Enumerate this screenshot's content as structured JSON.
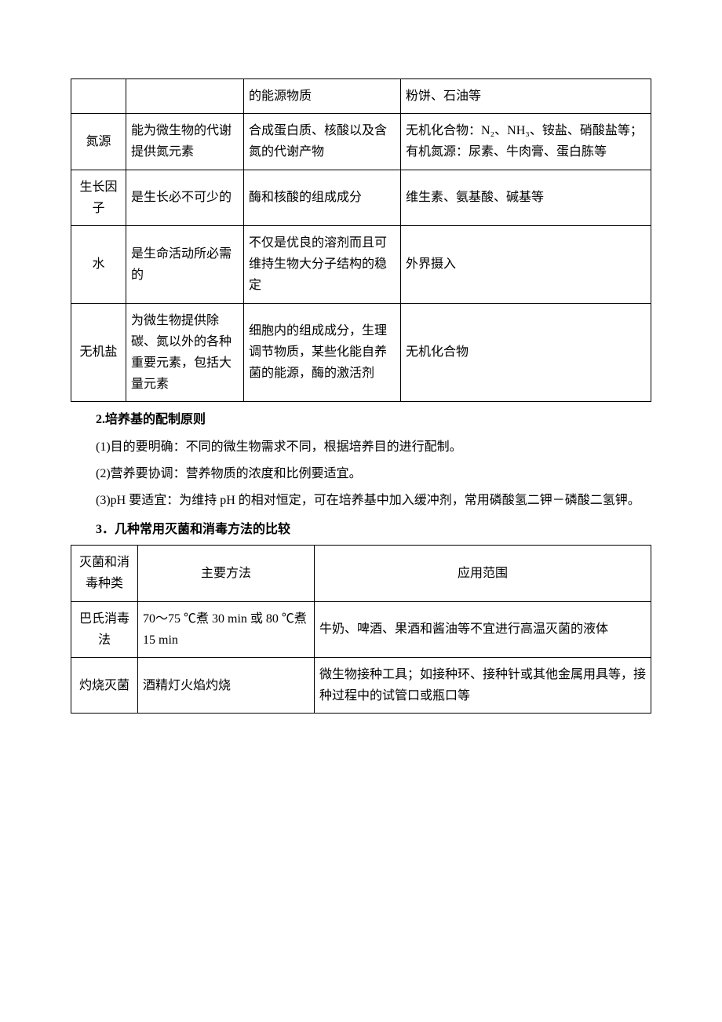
{
  "colors": {
    "page_bg": "#ffffff",
    "text": "#000000",
    "border": "#000000"
  },
  "typography": {
    "body_font": "SimSun",
    "body_size_pt": 12,
    "heading_weight": "bold",
    "line_height": 1.9
  },
  "table1": {
    "type": "table",
    "rows": [
      {
        "c1": "",
        "c2": "",
        "c3": "的能源物质",
        "c4": "粉饼、石油等"
      },
      {
        "c1": "氮源",
        "c2": "能为微生物的代谢提供氮元素",
        "c3": "合成蛋白质、核酸以及含氮的代谢产物",
        "c4": "无机化合物：N₂、NH₃、铵盐、硝酸盐等；有机氮源：尿素、牛肉膏、蛋白胨等"
      },
      {
        "c1": "生长因子",
        "c2": "是生长必不可少的",
        "c3": "酶和核酸的组成成分",
        "c4": "维生素、氨基酸、碱基等"
      },
      {
        "c1": "水",
        "c2": "是生命活动所必需的",
        "c3": "不仅是优良的溶剂而且可维持生物大分子结构的稳定",
        "c4": "外界摄入"
      },
      {
        "c1": "无机盐",
        "c2": "为微生物提供除碳、氮以外的各种重要元素，包括大量元素",
        "c3": "细胞内的组成成分，生理调节物质，某些化能自养菌的能源，酶的激活剂",
        "c4": "无机化合物"
      }
    ]
  },
  "heading2": "2.培养基的配制原则",
  "para1": "(1)目的要明确：不同的微生物需求不同，根据培养目的进行配制。",
  "para2": "(2)营养要协调：营养物质的浓度和比例要适宜。",
  "para3": "(3)pH 要适宜：为维持 pH 的相对恒定，可在培养基中加入缓冲剂，常用磷酸氢二钾－磷酸二氢钾。",
  "heading3": "3．几种常用灭菌和消毒方法的比较",
  "table2": {
    "type": "table",
    "header": {
      "c1": "灭菌和消毒种类",
      "c2": "主要方法",
      "c3": "应用范围"
    },
    "rows": [
      {
        "c1": "巴氏消毒法",
        "c2": "70～75 ℃煮 30 min 或 80 ℃煮 15 min",
        "c3": "牛奶、啤酒、果酒和酱油等不宜进行高温灭菌的液体"
      },
      {
        "c1": "灼烧灭菌",
        "c2": "酒精灯火焰灼烧",
        "c3": "微生物接种工具；如接种环、接种针或其他金属用具等，接种过程中的试管口或瓶口等"
      }
    ]
  }
}
